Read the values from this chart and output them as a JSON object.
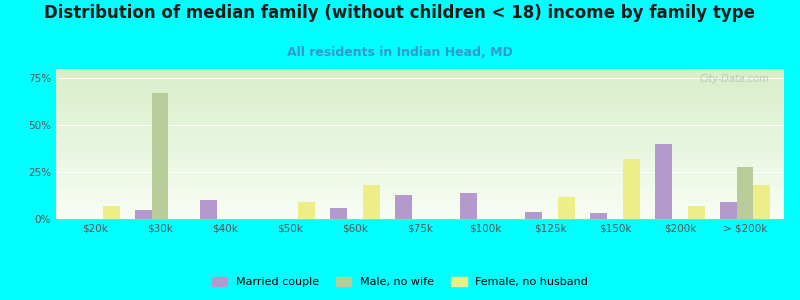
{
  "title": "Distribution of median family (without children < 18) income by family type",
  "subtitle": "All residents in Indian Head, MD",
  "background_color": "#00FFFF",
  "categories": [
    "$20k",
    "$30k",
    "$40k",
    "$50k",
    "$60k",
    "$75k",
    "$100k",
    "$125k",
    "$150k",
    "$200k",
    "> $200k"
  ],
  "married_couple": [
    0,
    5,
    10,
    0,
    6,
    13,
    14,
    4,
    3,
    40,
    9
  ],
  "male_no_wife": [
    0,
    67,
    0,
    0,
    0,
    0,
    0,
    0,
    0,
    0,
    28
  ],
  "female_no_husband": [
    7,
    0,
    0,
    9,
    18,
    0,
    0,
    12,
    32,
    7,
    18
  ],
  "married_color": "#b399cc",
  "male_color": "#b8cc99",
  "female_color": "#eeee88",
  "ylim": [
    0,
    80
  ],
  "yticks": [
    0,
    25,
    50,
    75
  ],
  "ytick_labels": [
    "0%",
    "25%",
    "50%",
    "75%"
  ],
  "title_fontsize": 12,
  "subtitle_fontsize": 9,
  "subtitle_color": "#3399cc",
  "watermark": "City-Data.com",
  "legend_labels": [
    "Married couple",
    "Male, no wife",
    "Female, no husband"
  ]
}
